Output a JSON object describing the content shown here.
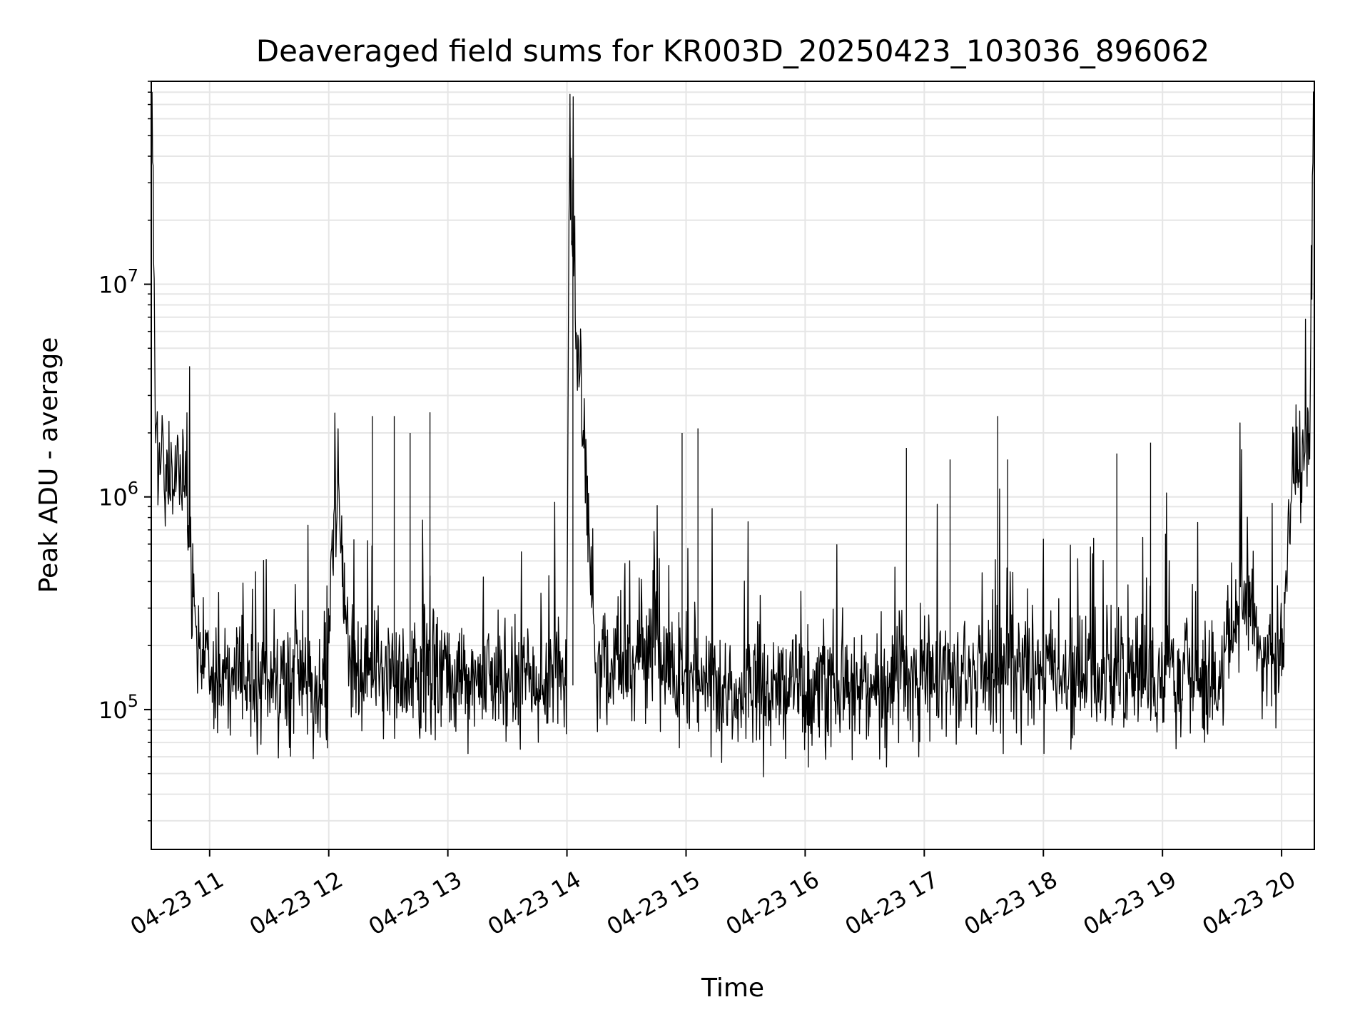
{
  "chart_data": {
    "type": "line",
    "title": "Deaveraged field sums for KR003D_20250423_103036_896062",
    "xlabel": "Time",
    "ylabel": "Peak ADU - average",
    "y_scale": "log",
    "ylim": [
      22000,
      90000000
    ],
    "xlim": [
      "04-23 10:30:36",
      "04-23 20:16:30"
    ],
    "grid": true,
    "grid_minor": true,
    "line_color": "#000000",
    "x_tick_labels": [
      "04-23 11",
      "04-23 12",
      "04-23 13",
      "04-23 14",
      "04-23 15",
      "04-23 16",
      "04-23 17",
      "04-23 18",
      "04-23 19",
      "04-23 20"
    ],
    "x_ticks": [
      "04-23 11:00",
      "04-23 12:00",
      "04-23 13:00",
      "04-23 14:00",
      "04-23 15:00",
      "04-23 16:00",
      "04-23 17:00",
      "04-23 18:00",
      "04-23 19:00",
      "04-23 20:00"
    ],
    "y_ticks": [
      {
        "value": 100000,
        "base": "10",
        "exp": "5"
      },
      {
        "value": 1000000,
        "base": "10",
        "exp": "6"
      },
      {
        "value": 10000000,
        "base": "10",
        "exp": "7"
      }
    ],
    "series": [
      {
        "x": [
          "04-23 10:31",
          "04-23 10:33",
          "04-23 10:35",
          "04-23 10:38",
          "04-23 10:42",
          "04-23 10:46",
          "04-23 10:50",
          "04-23 10:53",
          "04-23 10:57",
          "04-23 11:00",
          "04-23 11:10",
          "04-23 11:20",
          "04-23 11:30",
          "04-23 11:40",
          "04-23 11:50",
          "04-23 11:59",
          "04-23 12:03",
          "04-23 12:07",
          "04-23 12:10",
          "04-23 12:15",
          "04-23 12:30",
          "04-23 12:45",
          "04-23 13:00",
          "04-23 13:15",
          "04-23 13:30",
          "04-23 13:45",
          "04-23 14:00",
          "04-23 14:01",
          "04-23 14:15",
          "04-23 14:30",
          "04-23 14:45",
          "04-23 15:00",
          "04-23 15:30",
          "04-23 16:00",
          "04-23 16:30",
          "04-23 17:00",
          "04-23 17:30",
          "04-23 18:00",
          "04-23 18:30",
          "04-23 19:00",
          "04-23 19:30",
          "04-23 19:42",
          "04-23 19:50",
          "04-23 20:00",
          "04-23 20:05",
          "04-23 20:10",
          "04-23 20:14",
          "04-23 20:16"
        ],
        "y": [
          50000000,
          2000000,
          1300000,
          1400000,
          1200000,
          1300000,
          600000,
          250000,
          180000,
          170000,
          150000,
          130000,
          140000,
          150000,
          140000,
          110000,
          1200000,
          500000,
          150000,
          140000,
          150000,
          140000,
          160000,
          140000,
          130000,
          140000,
          150000,
          30000000,
          150000,
          170000,
          200000,
          130000,
          120000,
          120000,
          120000,
          150000,
          160000,
          150000,
          150000,
          140000,
          150000,
          400000,
          160000,
          200000,
          1200000,
          1300000,
          1500000,
          60000000
        ]
      }
    ],
    "spikes": [
      {
        "x": "04-23 12:22",
        "y": 2400000
      },
      {
        "x": "04-23 12:33",
        "y": 2400000
      },
      {
        "x": "04-23 12:41",
        "y": 2000000
      },
      {
        "x": "04-23 12:51",
        "y": 2500000
      },
      {
        "x": "04-23 14:03",
        "y": 31000000
      },
      {
        "x": "04-23 14:58",
        "y": 2000000
      },
      {
        "x": "04-23 15:06",
        "y": 2100000
      },
      {
        "x": "04-23 16:51",
        "y": 1700000
      },
      {
        "x": "04-23 17:13",
        "y": 1500000
      },
      {
        "x": "04-23 17:37",
        "y": 2400000
      },
      {
        "x": "04-23 17:42",
        "y": 1500000
      },
      {
        "x": "04-23 18:37",
        "y": 1600000
      },
      {
        "x": "04-23 18:54",
        "y": 1800000
      }
    ]
  }
}
